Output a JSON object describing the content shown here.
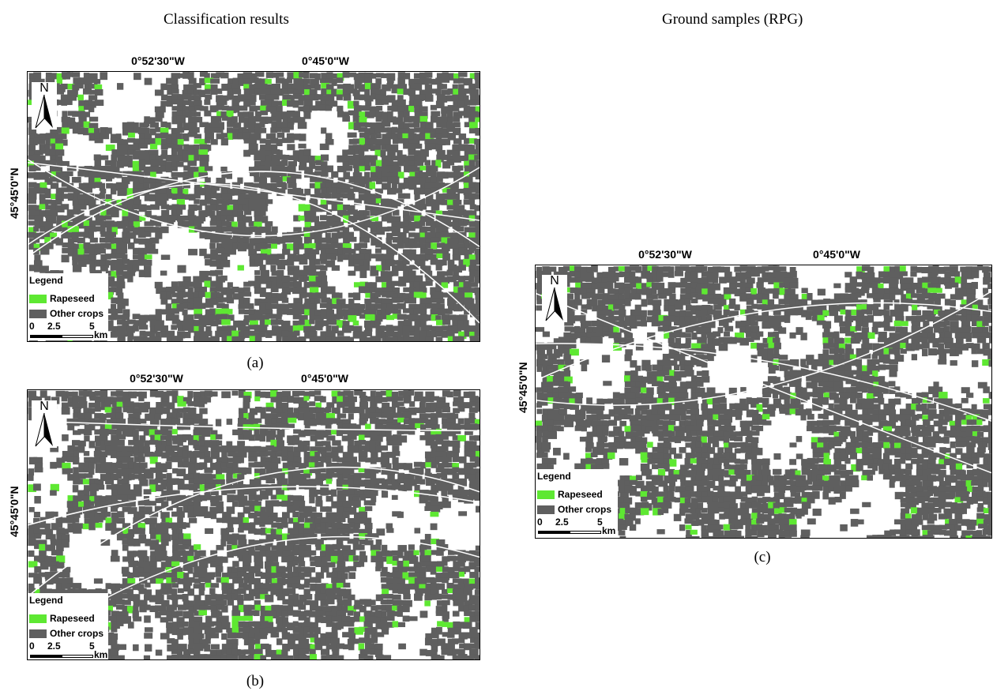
{
  "headings": {
    "left": "Classification results",
    "right": "Ground samples (RPG)"
  },
  "panels": [
    {
      "id": "a",
      "caption": "(a)",
      "top_left_coord": "0°52'30\"W",
      "top_right_coord": "0°45'0\"W",
      "side_coord": "45°45'0\"N",
      "north_label": "N",
      "legend": {
        "title": "Legend",
        "items": [
          {
            "label": "Rapeseed",
            "color": "#5ee832"
          },
          {
            "label": "Other crops",
            "color": "#5f5f5f"
          }
        ],
        "scale_ticks": [
          "0",
          "2.5",
          "5"
        ],
        "scale_unit": "km"
      }
    },
    {
      "id": "b",
      "caption": "(b)",
      "top_left_coord": "0°52'30\"W",
      "top_right_coord": "0°45'0\"W",
      "side_coord": "45°45'0\"N",
      "north_label": "N",
      "legend": {
        "title": "Legend",
        "items": [
          {
            "label": "Rapeseed",
            "color": "#5ee832"
          },
          {
            "label": "Other crops",
            "color": "#5f5f5f"
          }
        ],
        "scale_ticks": [
          "0",
          "2.5",
          "5"
        ],
        "scale_unit": "km"
      }
    },
    {
      "id": "c",
      "caption": "(c)",
      "top_left_coord": "0°52'30\"W",
      "top_right_coord": "0°45'0\"W",
      "side_coord": "45°45'0\"N",
      "north_label": "N",
      "legend": {
        "title": "Legend",
        "items": [
          {
            "label": "Rapeseed",
            "color": "#5ee832"
          },
          {
            "label": "Other crops",
            "color": "#5f5f5f"
          }
        ],
        "scale_ticks": [
          "0",
          "2.5",
          "5"
        ],
        "scale_unit": "km"
      }
    }
  ],
  "colors": {
    "crop_other": "#5f5f5f",
    "crop_rapeseed": "#5ee832",
    "background": "#ffffff"
  }
}
